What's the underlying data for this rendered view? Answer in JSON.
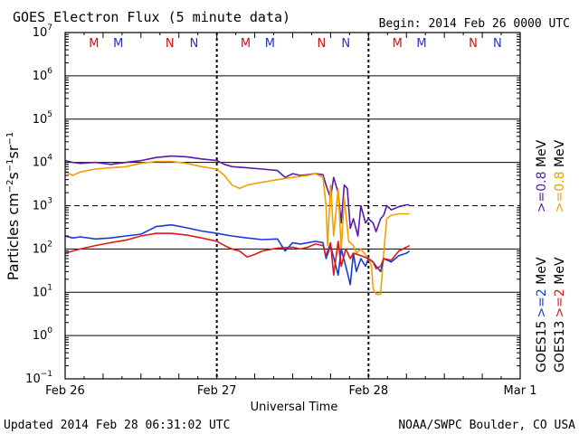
{
  "header": {
    "title": "GOES Electron Flux (5 minute data)",
    "begin": "Begin: 2014 Feb 26 0000 UTC"
  },
  "footer": {
    "updated": "Updated 2014 Feb 28 06:31:02 UTC",
    "credit": "NOAA/SWPC Boulder, CO USA"
  },
  "colors": {
    "goes15_08": "#5a1aa8",
    "goes13_08": "#f0a000",
    "goes15_2": "#1a3ad8",
    "goes13_2": "#e01818",
    "marker_m": "#d01010",
    "marker_n_red": "#d01010",
    "marker_blue": "#2030c8",
    "threshold_line": "#000000"
  },
  "chart_data": {
    "type": "line",
    "title": "GOES Electron Flux (5 minute data)",
    "xlabel": "Universal Time",
    "ylabel": "Particles cm⁻²s⁻¹sr⁻¹",
    "y_scale": "log",
    "ylim": [
      0.1,
      10000000
    ],
    "y_ticks": [
      {
        "mant": "10",
        "exp": "7",
        "value": 10000000
      },
      {
        "mant": "10",
        "exp": "6",
        "value": 1000000
      },
      {
        "mant": "10",
        "exp": "5",
        "value": 100000
      },
      {
        "mant": "10",
        "exp": "4",
        "value": 10000
      },
      {
        "mant": "10",
        "exp": "3",
        "value": 1000
      },
      {
        "mant": "10",
        "exp": "2",
        "value": 100
      },
      {
        "mant": "10",
        "exp": "1",
        "value": 10
      },
      {
        "mant": "10",
        "exp": "0",
        "value": 1
      },
      {
        "mant": "10",
        "exp": "−1",
        "value": 0.1
      }
    ],
    "x_unit": "day offset from 2014 Feb 26 0000 UTC",
    "xlim": [
      0,
      3
    ],
    "x_ticks": [
      {
        "label": "Feb 26",
        "value": 0
      },
      {
        "label": "Feb 27",
        "value": 1
      },
      {
        "label": "Feb 28",
        "value": 2
      },
      {
        "label": "Mar 1",
        "value": 3
      }
    ],
    "grid": true,
    "threshold": 1000,
    "day_markers": [
      {
        "label": "M",
        "x": 0.19,
        "color": "#d01010"
      },
      {
        "label": "M",
        "x": 0.35,
        "color": "#2030c8"
      },
      {
        "label": "N",
        "x": 0.69,
        "color": "#d01010"
      },
      {
        "label": "N",
        "x": 0.85,
        "color": "#2030c8"
      },
      {
        "label": "M",
        "x": 1.19,
        "color": "#d01010"
      },
      {
        "label": "M",
        "x": 1.35,
        "color": "#2030c8"
      },
      {
        "label": "N",
        "x": 1.69,
        "color": "#d01010"
      },
      {
        "label": "N",
        "x": 1.85,
        "color": "#2030c8"
      },
      {
        "label": "M",
        "x": 2.19,
        "color": "#d01010"
      },
      {
        "label": "M",
        "x": 2.35,
        "color": "#2030c8"
      },
      {
        "label": "N",
        "x": 2.69,
        "color": "#d01010"
      },
      {
        "label": "N",
        "x": 2.85,
        "color": "#2030c8"
      }
    ],
    "legend": [
      {
        "sat": "GOES15",
        "text": ">=0.8 MeV",
        "color": "#5a1aa8"
      },
      {
        "sat": "GOES15",
        "text": ">=2 MeV",
        "color": "#1a3ad8"
      },
      {
        "sat": "GOES13",
        "text": ">=0.8 MeV",
        "color": "#f0a000"
      },
      {
        "sat": "GOES13",
        "text": ">=2 MeV",
        "color": "#e01818"
      }
    ],
    "series": [
      {
        "name": ">=0.8 MeV",
        "satellite": "GOES15",
        "color": "#5a1aa8",
        "points": [
          [
            0,
            11000
          ],
          [
            0.05,
            10000
          ],
          [
            0.1,
            9500
          ],
          [
            0.2,
            10000
          ],
          [
            0.3,
            9000
          ],
          [
            0.4,
            10000
          ],
          [
            0.5,
            11000
          ],
          [
            0.6,
            13000
          ],
          [
            0.7,
            14000
          ],
          [
            0.8,
            13500
          ],
          [
            0.9,
            12000
          ],
          [
            1.0,
            11000
          ],
          [
            1.05,
            9000
          ],
          [
            1.1,
            8000
          ],
          [
            1.2,
            7500
          ],
          [
            1.3,
            7000
          ],
          [
            1.4,
            6500
          ],
          [
            1.45,
            4500
          ],
          [
            1.5,
            5500
          ],
          [
            1.55,
            5000
          ],
          [
            1.6,
            5200
          ],
          [
            1.65,
            5500
          ],
          [
            1.7,
            5200
          ],
          [
            1.72,
            3000
          ],
          [
            1.75,
            1500
          ],
          [
            1.77,
            4500
          ],
          [
            1.8,
            2000
          ],
          [
            1.82,
            400
          ],
          [
            1.84,
            3000
          ],
          [
            1.86,
            2500
          ],
          [
            1.88,
            300
          ],
          [
            1.9,
            500
          ],
          [
            1.93,
            200
          ],
          [
            1.95,
            1000
          ],
          [
            1.98,
            400
          ],
          [
            2.0,
            500
          ],
          [
            2.03,
            400
          ],
          [
            2.05,
            250
          ],
          [
            2.08,
            500
          ],
          [
            2.1,
            600
          ],
          [
            2.12,
            1000
          ],
          [
            2.15,
            800
          ],
          [
            2.2,
            950
          ],
          [
            2.25,
            1050
          ],
          [
            2.27,
            1050
          ]
        ]
      },
      {
        "name": ">=0.8 MeV",
        "satellite": "GOES13",
        "color": "#f0a000",
        "points": [
          [
            0,
            6000
          ],
          [
            0.05,
            5000
          ],
          [
            0.1,
            6000
          ],
          [
            0.2,
            7000
          ],
          [
            0.3,
            7500
          ],
          [
            0.4,
            8000
          ],
          [
            0.5,
            9500
          ],
          [
            0.6,
            10500
          ],
          [
            0.7,
            10500
          ],
          [
            0.8,
            9500
          ],
          [
            0.9,
            8000
          ],
          [
            1.0,
            7000
          ],
          [
            1.05,
            5000
          ],
          [
            1.1,
            3000
          ],
          [
            1.15,
            2500
          ],
          [
            1.2,
            3000
          ],
          [
            1.3,
            3500
          ],
          [
            1.4,
            4000
          ],
          [
            1.5,
            4500
          ],
          [
            1.6,
            5000
          ],
          [
            1.65,
            5500
          ],
          [
            1.7,
            4500
          ],
          [
            1.72,
            1000
          ],
          [
            1.73,
            120
          ],
          [
            1.75,
            3000
          ],
          [
            1.77,
            200
          ],
          [
            1.8,
            2500
          ],
          [
            1.82,
            100
          ],
          [
            1.84,
            1500
          ],
          [
            1.87,
            150
          ],
          [
            1.9,
            120
          ],
          [
            1.92,
            80
          ],
          [
            1.95,
            100
          ],
          [
            2.0,
            60
          ],
          [
            2.02,
            40
          ],
          [
            2.03,
            12
          ],
          [
            2.05,
            9
          ],
          [
            2.08,
            9
          ],
          [
            2.1,
            80
          ],
          [
            2.12,
            500
          ],
          [
            2.15,
            600
          ],
          [
            2.2,
            650
          ],
          [
            2.25,
            650
          ],
          [
            2.27,
            650
          ]
        ]
      },
      {
        "name": ">=2 MeV",
        "satellite": "GOES15",
        "color": "#1a3ad8",
        "points": [
          [
            0,
            200
          ],
          [
            0.05,
            180
          ],
          [
            0.1,
            190
          ],
          [
            0.2,
            170
          ],
          [
            0.3,
            180
          ],
          [
            0.4,
            200
          ],
          [
            0.5,
            220
          ],
          [
            0.6,
            330
          ],
          [
            0.7,
            360
          ],
          [
            0.8,
            310
          ],
          [
            0.9,
            260
          ],
          [
            1.0,
            230
          ],
          [
            1.1,
            200
          ],
          [
            1.2,
            180
          ],
          [
            1.3,
            165
          ],
          [
            1.4,
            170
          ],
          [
            1.45,
            90
          ],
          [
            1.5,
            140
          ],
          [
            1.55,
            130
          ],
          [
            1.6,
            140
          ],
          [
            1.65,
            150
          ],
          [
            1.7,
            140
          ],
          [
            1.72,
            60
          ],
          [
            1.75,
            120
          ],
          [
            1.8,
            25
          ],
          [
            1.82,
            100
          ],
          [
            1.85,
            40
          ],
          [
            1.88,
            15
          ],
          [
            1.9,
            80
          ],
          [
            1.92,
            30
          ],
          [
            1.95,
            60
          ],
          [
            1.98,
            40
          ],
          [
            2.0,
            60
          ],
          [
            2.03,
            50
          ],
          [
            2.05,
            40
          ],
          [
            2.08,
            30
          ],
          [
            2.1,
            60
          ],
          [
            2.15,
            50
          ],
          [
            2.2,
            70
          ],
          [
            2.25,
            80
          ],
          [
            2.27,
            90
          ]
        ]
      },
      {
        "name": ">=2 MeV",
        "satellite": "GOES13",
        "color": "#e01818",
        "points": [
          [
            0,
            80
          ],
          [
            0.05,
            90
          ],
          [
            0.1,
            100
          ],
          [
            0.2,
            120
          ],
          [
            0.3,
            140
          ],
          [
            0.4,
            160
          ],
          [
            0.5,
            200
          ],
          [
            0.6,
            230
          ],
          [
            0.7,
            230
          ],
          [
            0.8,
            210
          ],
          [
            0.9,
            180
          ],
          [
            1.0,
            150
          ],
          [
            1.05,
            120
          ],
          [
            1.1,
            100
          ],
          [
            1.15,
            90
          ],
          [
            1.2,
            65
          ],
          [
            1.25,
            75
          ],
          [
            1.3,
            90
          ],
          [
            1.4,
            105
          ],
          [
            1.5,
            110
          ],
          [
            1.55,
            100
          ],
          [
            1.6,
            110
          ],
          [
            1.65,
            130
          ],
          [
            1.7,
            120
          ],
          [
            1.72,
            70
          ],
          [
            1.75,
            140
          ],
          [
            1.77,
            25
          ],
          [
            1.8,
            150
          ],
          [
            1.82,
            40
          ],
          [
            1.85,
            100
          ],
          [
            1.88,
            60
          ],
          [
            1.9,
            80
          ],
          [
            1.95,
            70
          ],
          [
            2.0,
            60
          ],
          [
            2.03,
            50
          ],
          [
            2.05,
            35
          ],
          [
            2.08,
            40
          ],
          [
            2.1,
            60
          ],
          [
            2.15,
            55
          ],
          [
            2.2,
            90
          ],
          [
            2.25,
            110
          ],
          [
            2.27,
            120
          ]
        ]
      }
    ]
  }
}
